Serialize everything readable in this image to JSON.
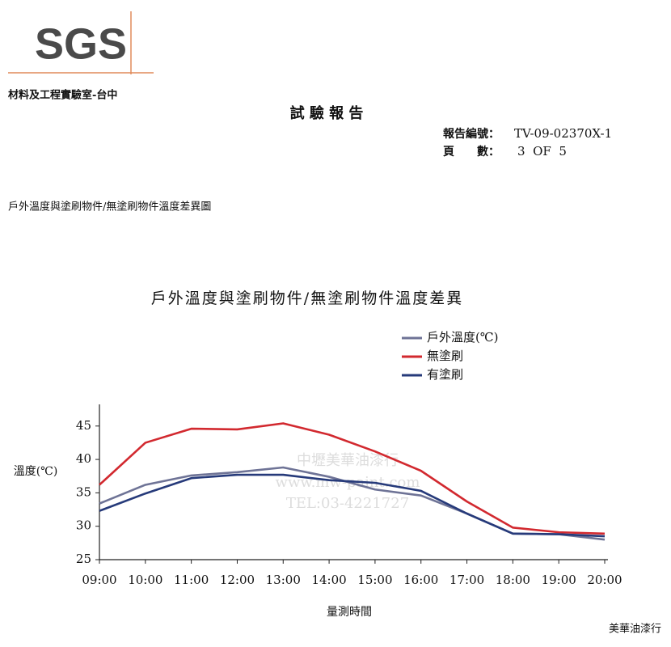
{
  "header": {
    "logo": "SGS",
    "lab": "材料及工程實驗室-台中",
    "title": "試 驗 報 告",
    "report_no_label": "報告編號：",
    "report_no": "TV-09-02370X-1",
    "page_label": "頁　　數：",
    "page": "3  OF  5"
  },
  "caption": "戶外溫度與塗刷物件/無塗刷物件溫度差異圖",
  "watermark": [
    "中壢美華油漆行",
    "www.mw-paint.com",
    "TEL:03-4221727"
  ],
  "footer": "美華油漆行",
  "chart_data": {
    "type": "line",
    "title": "戶外溫度與塗刷物件/無塗刷物件溫度差異",
    "x_label": "量測時間",
    "y_label": "溫度(℃)",
    "categories": [
      "09:00",
      "10:00",
      "11:00",
      "12:00",
      "13:00",
      "14:00",
      "15:00",
      "16:00",
      "17:00",
      "18:00",
      "19:00",
      "20:00"
    ],
    "series": [
      {
        "name": "戶外溫度(℃)",
        "color": "#6e7396",
        "values": [
          33.4,
          36.2,
          37.6,
          38.1,
          38.8,
          37.4,
          35.5,
          34.6,
          31.9,
          28.9,
          28.8,
          28.0
        ]
      },
      {
        "name": "無塗刷",
        "color": "#d2292f",
        "values": [
          36.2,
          42.5,
          44.6,
          44.5,
          45.4,
          43.7,
          41.2,
          38.3,
          33.7,
          29.8,
          29.1,
          28.9
        ]
      },
      {
        "name": "有塗刷",
        "color": "#263a7a",
        "values": [
          32.3,
          34.9,
          37.2,
          37.7,
          37.7,
          36.9,
          36.5,
          35.3,
          31.9,
          28.9,
          28.8,
          28.5
        ]
      }
    ],
    "ylim": [
      25,
      48
    ],
    "yticks": [
      25,
      30,
      35,
      40,
      45
    ]
  }
}
